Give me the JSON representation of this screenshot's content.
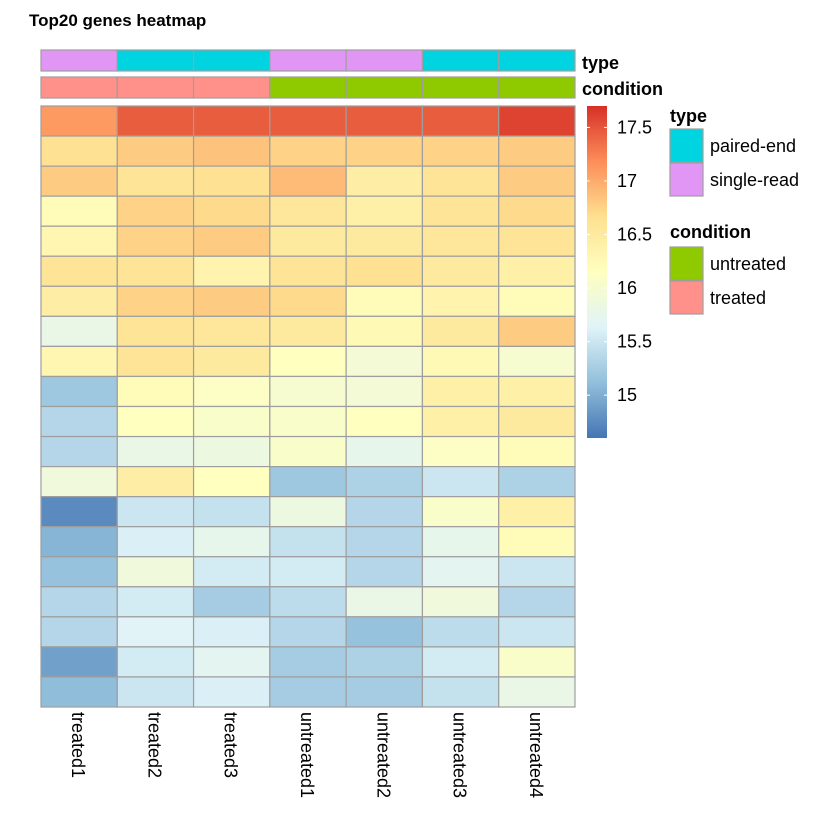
{
  "chart_data": {
    "type": "heatmap",
    "title": "Top20 genes heatmap",
    "columns": [
      "treated1",
      "treated2",
      "treated3",
      "untreated1",
      "untreated2",
      "untreated3",
      "untreated4"
    ],
    "values": [
      [
        17.1,
        17.45,
        17.45,
        17.45,
        17.45,
        17.45,
        17.6
      ],
      [
        16.65,
        16.8,
        16.85,
        16.75,
        16.75,
        16.75,
        16.8
      ],
      [
        16.8,
        16.6,
        16.65,
        16.9,
        16.45,
        16.6,
        16.8
      ],
      [
        16.2,
        16.75,
        16.7,
        16.55,
        16.4,
        16.6,
        16.7
      ],
      [
        16.3,
        16.75,
        16.8,
        16.5,
        16.5,
        16.55,
        16.6
      ],
      [
        16.6,
        16.6,
        16.35,
        16.6,
        16.65,
        16.5,
        16.4
      ],
      [
        16.45,
        16.75,
        16.8,
        16.7,
        16.2,
        16.35,
        16.2
      ],
      [
        15.8,
        16.6,
        16.55,
        16.5,
        16.25,
        16.5,
        16.8
      ],
      [
        16.3,
        16.6,
        16.5,
        16.15,
        15.95,
        16.25,
        16.0
      ],
      [
        15.2,
        16.2,
        16.1,
        16.0,
        15.95,
        16.4,
        16.4
      ],
      [
        15.35,
        16.15,
        16.05,
        16.05,
        16.15,
        16.4,
        16.5
      ],
      [
        15.35,
        15.8,
        15.85,
        16.05,
        15.75,
        16.1,
        16.2
      ],
      [
        15.9,
        16.45,
        16.15,
        15.2,
        15.3,
        15.5,
        15.3
      ],
      [
        14.75,
        15.5,
        15.45,
        15.85,
        15.35,
        16.05,
        16.4
      ],
      [
        15.05,
        15.6,
        15.75,
        15.45,
        15.35,
        15.75,
        16.2
      ],
      [
        15.15,
        15.9,
        15.55,
        15.55,
        15.35,
        15.7,
        15.5
      ],
      [
        15.35,
        15.55,
        15.25,
        15.4,
        15.8,
        15.9,
        15.35
      ],
      [
        15.35,
        15.65,
        15.6,
        15.35,
        15.15,
        15.4,
        15.5
      ],
      [
        14.9,
        15.55,
        15.7,
        15.25,
        15.3,
        15.55,
        16.05
      ],
      [
        15.1,
        15.5,
        15.6,
        15.25,
        15.25,
        15.45,
        15.8
      ]
    ],
    "color_scale": {
      "min": 14.6,
      "max": 17.7,
      "ticks": [
        15,
        15.5,
        16,
        16.5,
        17,
        17.5
      ],
      "tick_labels": [
        "15",
        "15.5",
        "16",
        "16.5",
        "17",
        "17.5"
      ],
      "stops": [
        "#4575B4",
        "#91BFDB",
        "#E0F3F8",
        "#FFFFBF",
        "#FEE090",
        "#FC8D59",
        "#D73027"
      ]
    },
    "annotations": {
      "type": {
        "label": "type",
        "values": [
          "single-read",
          "paired-end",
          "paired-end",
          "single-read",
          "single-read",
          "paired-end",
          "paired-end"
        ],
        "levels": [
          {
            "name": "paired-end",
            "color": "#00D4E1"
          },
          {
            "name": "single-read",
            "color": "#E196F6"
          }
        ]
      },
      "condition": {
        "label": "condition",
        "values": [
          "treated",
          "treated",
          "treated",
          "untreated",
          "untreated",
          "untreated",
          "untreated"
        ],
        "levels": [
          {
            "name": "untreated",
            "color": "#8FC900"
          },
          {
            "name": "treated",
            "color": "#FF918A"
          }
        ]
      }
    },
    "grid_color": "#9E9E9E",
    "legend_position": "right"
  }
}
